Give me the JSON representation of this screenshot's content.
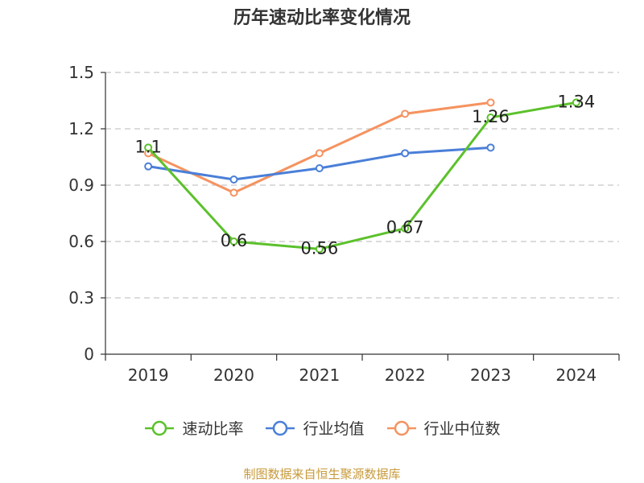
{
  "chart_data": {
    "type": "line",
    "title": "历年速动比率变化情况",
    "categories": [
      "2019",
      "2020",
      "2021",
      "2022",
      "2023",
      "2024"
    ],
    "y_ticks": [
      "0",
      "0.3",
      "0.6",
      "0.9",
      "1.2",
      "1.5"
    ],
    "ylim": [
      0,
      1.5
    ],
    "grid": true,
    "legend_position": "bottom",
    "series": [
      {
        "name": "速动比率",
        "color": "#5bc12b",
        "values": [
          1.1,
          0.6,
          0.56,
          0.67,
          1.26,
          1.34
        ],
        "labels": [
          "1.1",
          "0.6",
          "0.56",
          "0.67",
          "1.26",
          "1.34"
        ]
      },
      {
        "name": "行业均值",
        "color": "#4a7fd8",
        "values": [
          1.0,
          0.93,
          0.99,
          1.07,
          1.1,
          null
        ]
      },
      {
        "name": "行业中位数",
        "color": "#f59360",
        "values": [
          1.07,
          0.86,
          1.07,
          1.28,
          1.34,
          null
        ]
      }
    ]
  },
  "footer": "制图数据来自恒生聚源数据库"
}
